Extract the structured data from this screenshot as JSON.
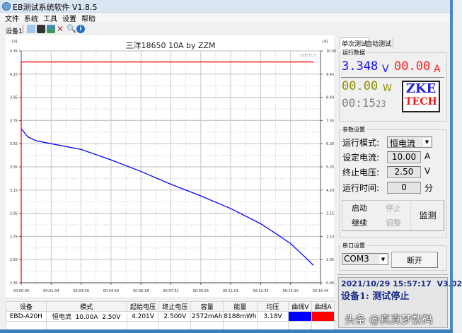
{
  "window": {
    "title": "EB测试系统软件 V1.8.5"
  },
  "menu": [
    "文件",
    "系统",
    "工具",
    "设置",
    "帮助"
  ],
  "toolbar": {
    "device_tab": "设备1",
    "icons": [
      "open-folder-icon",
      "save-icon",
      "image-icon",
      "tools-icon",
      "search-icon",
      "info-icon"
    ]
  },
  "chart_data": {
    "type": "line",
    "title": "三洋18650 10A by ZZM",
    "watermark": "ZKETECH",
    "ylabel_left": "[V]",
    "ylabel_right": "[A]",
    "ylim_left": [
      2.35,
      4.35
    ],
    "ylim_right": [
      0,
      10.5
    ],
    "yticks_left": [
      "4.35",
      "4.15",
      "3.95",
      "3.75",
      "3.55",
      "3.35",
      "3.15",
      "2.95",
      "2.75",
      "2.55",
      "2.35"
    ],
    "yticks_right": [
      "10.50",
      "9.45",
      "8.40",
      "7.35",
      "6.30",
      "5.25",
      "4.20",
      "3.15",
      "2.10",
      "1.05",
      "0.00"
    ],
    "xlim": [
      "00:00:00",
      "00:15:44"
    ],
    "xticks": [
      "00:00:00",
      "00:01:34",
      "00:03:09",
      "00:04:43",
      "00:06:18",
      "00:07:52",
      "00:09:26",
      "00:11:01",
      "00:12:35",
      "00:14:10",
      "00:15:44"
    ],
    "grid": true,
    "series": [
      {
        "axis": "left",
        "color": "#0000ff",
        "x": [
          "00:00:00",
          "00:00:20",
          "00:00:47",
          "00:01:34",
          "00:03:09",
          "00:04:43",
          "00:06:18",
          "00:07:52",
          "00:09:26",
          "00:11:01",
          "00:12:35",
          "00:13:20",
          "00:14:09",
          "00:14:56",
          "00:15:22"
        ],
        "values": [
          3.68,
          3.61,
          3.575,
          3.55,
          3.5,
          3.41,
          3.31,
          3.2,
          3.1,
          2.99,
          2.86,
          2.78,
          2.69,
          2.57,
          2.5
        ]
      },
      {
        "axis": "right",
        "color": "#ff0000",
        "x": [
          "00:00:00",
          "00:00:00",
          "00:15:22"
        ],
        "values": [
          0,
          10.0,
          10.0
        ]
      }
    ]
  },
  "right": {
    "tabs": [
      "单次测试",
      "自动测试"
    ],
    "run_data": {
      "label": "运行数据",
      "voltage": "3.348",
      "voltage_unit": "V",
      "current": "00.00",
      "current_unit": "A",
      "power": "00.00",
      "power_unit": "W",
      "time": "00:15",
      "time_sec": "23",
      "logo_top": "ZKE",
      "logo_bottom": "TECH"
    },
    "params": {
      "label": "参数设置",
      "mode_label": "运行模式:",
      "mode_value": "恒电流",
      "current_label": "设定电流:",
      "current_value": "10.00",
      "current_unit": "A",
      "voltage_label": "终止电压:",
      "voltage_value": "2.50",
      "voltage_unit": "V",
      "time_label": "运行时间:",
      "time_value": "0",
      "time_unit": "分",
      "buttons": {
        "start": "启动",
        "stop": "停止",
        "continue": "继续",
        "adjust": "调整",
        "monitor": "监测"
      }
    },
    "serial": {
      "label": "串口设置",
      "port": "COM3",
      "disconnect": "断开"
    },
    "status": {
      "line1": "2021/10/29 15:57:17  V3.02",
      "line2": "设备1: 测试停止",
      "watermark": "头条 @真真梦数码"
    }
  },
  "table": {
    "headers": [
      "设备",
      "模式",
      "起始电压",
      "终止电压",
      "容量",
      "能量",
      "均压",
      "曲线V",
      "曲线A"
    ],
    "row": [
      "EBD-A20H",
      "恒电流  10.00A  2.50V",
      "4.201V",
      "2.500V",
      "2572mAh",
      "8188mWh",
      "3.18V"
    ],
    "curve_colors": [
      "#0000ff",
      "#ff0000"
    ]
  }
}
